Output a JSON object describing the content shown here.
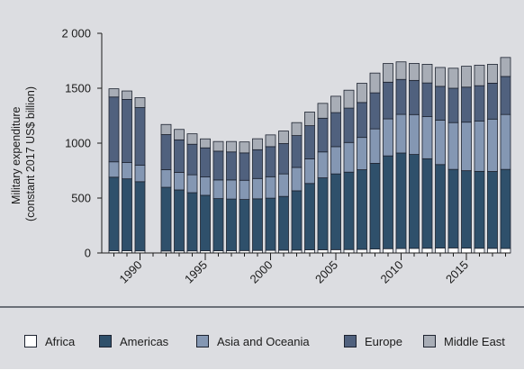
{
  "chart_data": {
    "type": "bar",
    "stacked": true,
    "ylabel_lines": [
      "Military expenditure",
      "(constant 2017 US$ billion)"
    ],
    "ylim": [
      0,
      2000
    ],
    "yticks": [
      {
        "value": 0,
        "label": "0"
      },
      {
        "value": 500,
        "label": "500"
      },
      {
        "value": 1000,
        "label": "1000"
      },
      {
        "value": 1500,
        "label": "1500"
      },
      {
        "value": 2000,
        "label": "2 000"
      }
    ],
    "xticks": [
      {
        "value": 1990,
        "label": "1990"
      },
      {
        "value": 1995,
        "label": "1995"
      },
      {
        "value": 2000,
        "label": "2000"
      },
      {
        "value": 2005,
        "label": "2005"
      },
      {
        "value": 2010,
        "label": "2010"
      },
      {
        "value": 2015,
        "label": "2015"
      }
    ],
    "x": [
      1988,
      1989,
      1990,
      1992,
      1993,
      1994,
      1995,
      1996,
      1997,
      1998,
      1999,
      2000,
      2001,
      2002,
      2003,
      2004,
      2005,
      2006,
      2007,
      2008,
      2009,
      2010,
      2011,
      2012,
      2013,
      2014,
      2015,
      2016,
      2017,
      2018
    ],
    "series": [
      {
        "name": "Africa",
        "color": "#ffffff",
        "values": [
          20,
          20,
          19,
          18,
          19,
          19,
          20,
          20,
          21,
          22,
          23,
          24,
          25,
          26,
          28,
          29,
          30,
          31,
          33,
          36,
          39,
          40,
          42,
          43,
          45,
          46,
          44,
          43,
          42,
          41
        ]
      },
      {
        "name": "Americas",
        "color": "#2f506b",
        "values": [
          670,
          655,
          630,
          580,
          555,
          530,
          505,
          475,
          470,
          465,
          470,
          475,
          490,
          540,
          605,
          655,
          690,
          705,
          725,
          780,
          845,
          870,
          855,
          815,
          760,
          715,
          705,
          700,
          700,
          720
        ]
      },
      {
        "name": "Asia and Oceania",
        "color": "#8497b3",
        "values": [
          140,
          148,
          150,
          160,
          160,
          163,
          167,
          170,
          174,
          175,
          185,
          195,
          205,
          213,
          224,
          236,
          248,
          270,
          294,
          314,
          337,
          352,
          363,
          383,
          405,
          426,
          442,
          457,
          477,
          500
        ]
      },
      {
        "name": "Europe",
        "color": "#50617e",
        "values": [
          590,
          575,
          525,
          320,
          296,
          278,
          265,
          262,
          255,
          249,
          262,
          274,
          276,
          290,
          302,
          307,
          310,
          313,
          318,
          328,
          334,
          318,
          311,
          307,
          307,
          313,
          319,
          323,
          327,
          346
        ]
      },
      {
        "name": "Middle East",
        "color": "#a8adb6",
        "values": [
          75,
          77,
          90,
          92,
          95,
          95,
          82,
          88,
          95,
          100,
          100,
          107,
          114,
          118,
          124,
          135,
          149,
          163,
          175,
          180,
          170,
          160,
          155,
          170,
          172,
          182,
          190,
          187,
          172,
          173
        ]
      }
    ]
  }
}
